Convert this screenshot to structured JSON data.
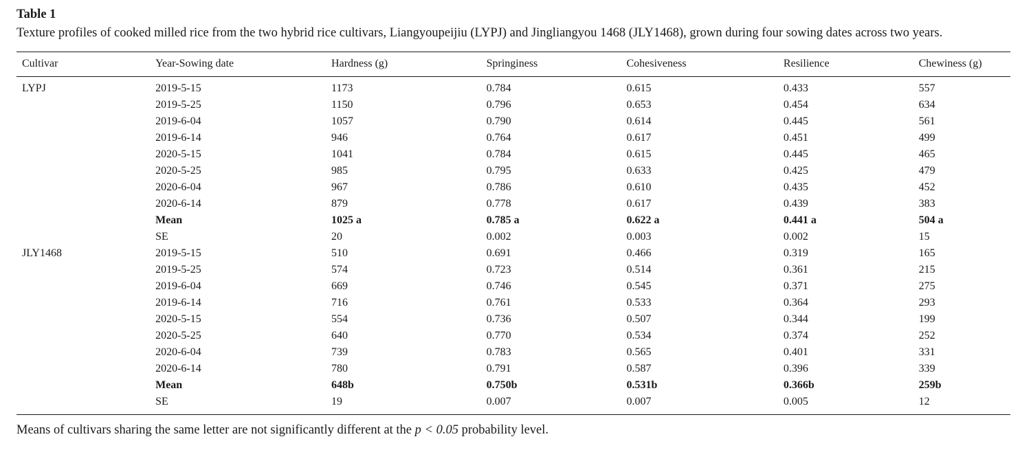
{
  "page": {
    "title": "Table 1",
    "caption": "Texture profiles of cooked milled rice from the two hybrid rice cultivars, Liangyoupeijiu (LYPJ) and Jingliangyou 1468 (JLY1468), grown during four sowing dates across two years.",
    "footnote": {
      "pre": "Means of cultivars sharing the same letter are not significantly different at the ",
      "italic": "p < 0.05",
      "post": " probability level."
    }
  },
  "table": {
    "headers": [
      "Cultivar",
      "Year-Sowing date",
      "Hardness (g)",
      "Springiness",
      "Cohesiveness",
      "Resilience",
      "Chewiness (g)"
    ],
    "rows": [
      {
        "bold": false,
        "cells": [
          "LYPJ",
          "2019-5-15",
          "1173",
          "0.784",
          "0.615",
          "0.433",
          "557"
        ]
      },
      {
        "bold": false,
        "cells": [
          "",
          "2019-5-25",
          "1150",
          "0.796",
          "0.653",
          "0.454",
          "634"
        ]
      },
      {
        "bold": false,
        "cells": [
          "",
          "2019-6-04",
          "1057",
          "0.790",
          "0.614",
          "0.445",
          "561"
        ]
      },
      {
        "bold": false,
        "cells": [
          "",
          "2019-6-14",
          "946",
          "0.764",
          "0.617",
          "0.451",
          "499"
        ]
      },
      {
        "bold": false,
        "cells": [
          "",
          "2020-5-15",
          "1041",
          "0.784",
          "0.615",
          "0.445",
          "465"
        ]
      },
      {
        "bold": false,
        "cells": [
          "",
          "2020-5-25",
          "985",
          "0.795",
          "0.633",
          "0.425",
          "479"
        ]
      },
      {
        "bold": false,
        "cells": [
          "",
          "2020-6-04",
          "967",
          "0.786",
          "0.610",
          "0.435",
          "452"
        ]
      },
      {
        "bold": false,
        "cells": [
          "",
          "2020-6-14",
          "879",
          "0.778",
          "0.617",
          "0.439",
          "383"
        ]
      },
      {
        "bold": true,
        "cells": [
          "",
          "Mean",
          "1025 a",
          "0.785 a",
          "0.622 a",
          "0.441 a",
          "504 a"
        ]
      },
      {
        "bold": false,
        "cells": [
          "",
          "SE",
          "20",
          "0.002",
          "0.003",
          "0.002",
          "15"
        ]
      },
      {
        "bold": false,
        "cells": [
          "JLY1468",
          "2019-5-15",
          "510",
          "0.691",
          "0.466",
          "0.319",
          "165"
        ]
      },
      {
        "bold": false,
        "cells": [
          "",
          "2019-5-25",
          "574",
          "0.723",
          "0.514",
          "0.361",
          "215"
        ]
      },
      {
        "bold": false,
        "cells": [
          "",
          "2019-6-04",
          "669",
          "0.746",
          "0.545",
          "0.371",
          "275"
        ]
      },
      {
        "bold": false,
        "cells": [
          "",
          "2019-6-14",
          "716",
          "0.761",
          "0.533",
          "0.364",
          "293"
        ]
      },
      {
        "bold": false,
        "cells": [
          "",
          "2020-5-15",
          "554",
          "0.736",
          "0.507",
          "0.344",
          "199"
        ]
      },
      {
        "bold": false,
        "cells": [
          "",
          "2020-5-25",
          "640",
          "0.770",
          "0.534",
          "0.374",
          "252"
        ]
      },
      {
        "bold": false,
        "cells": [
          "",
          "2020-6-04",
          "739",
          "0.783",
          "0.565",
          "0.401",
          "331"
        ]
      },
      {
        "bold": false,
        "cells": [
          "",
          "2020-6-14",
          "780",
          "0.791",
          "0.587",
          "0.396",
          "339"
        ]
      },
      {
        "bold": true,
        "cells": [
          "",
          "Mean",
          "648b",
          "0.750b",
          "0.531b",
          "0.366b",
          "259b"
        ]
      },
      {
        "bold": false,
        "cells": [
          "",
          "SE",
          "19",
          "0.007",
          "0.007",
          "0.005",
          "12"
        ]
      }
    ]
  }
}
